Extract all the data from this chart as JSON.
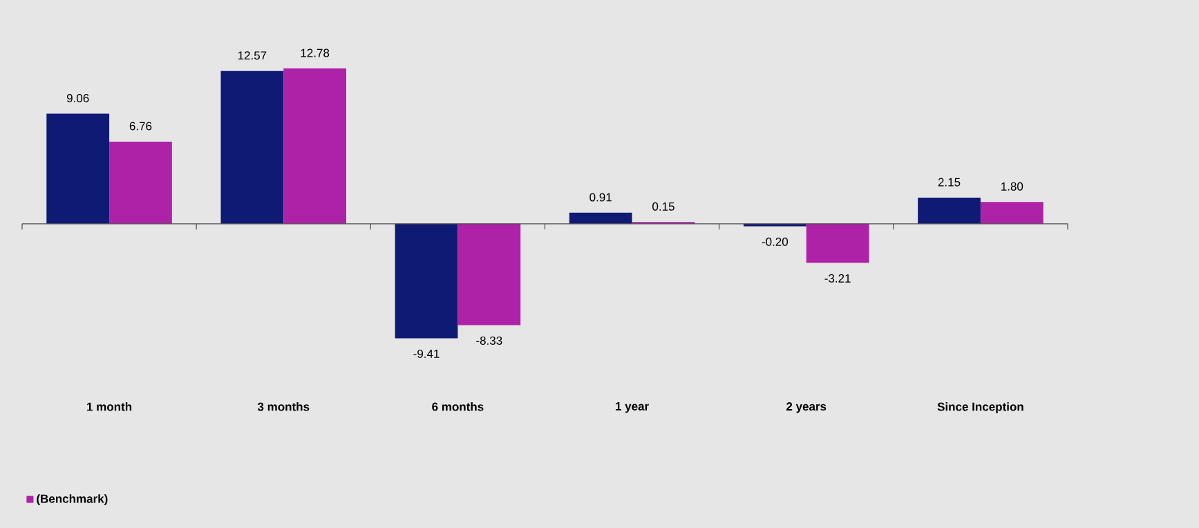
{
  "chart_data": {
    "type": "bar",
    "categories": [
      "1 month",
      "3 months",
      "6 months",
      "1 year",
      "2 years",
      "Since Inception"
    ],
    "series": [
      {
        "color": "#0f1a75",
        "values": [
          9.06,
          12.57,
          -9.41,
          0.91,
          -0.2,
          2.15
        ],
        "value_labels": [
          "9.06",
          "12.57",
          "-9.41",
          "0.91",
          "-0.20",
          "2.15"
        ]
      },
      {
        "name": "(Benchmark)",
        "color": "#ad22a6",
        "values": [
          6.76,
          12.78,
          -8.33,
          0.15,
          -3.21,
          1.8
        ],
        "value_labels": [
          "6.76",
          "12.78",
          "-8.33",
          "0.15",
          "-3.21",
          "1.80"
        ]
      }
    ],
    "legend": "bottom left"
  }
}
